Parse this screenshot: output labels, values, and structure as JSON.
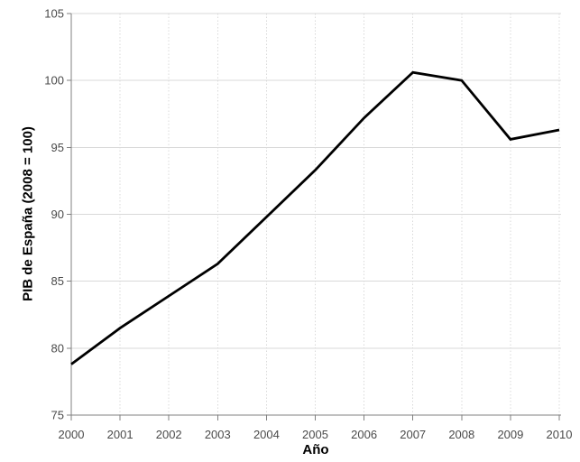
{
  "chart_data": {
    "type": "line",
    "x": [
      "2000",
      "2001",
      "2002",
      "2003",
      "2004",
      "2005",
      "2006",
      "2007",
      "2008",
      "2009",
      "2010"
    ],
    "series": [
      {
        "name": "PIB de España",
        "values": [
          78.8,
          81.5,
          83.9,
          86.3,
          89.8,
          93.3,
          97.2,
          100.6,
          100.0,
          95.6,
          96.3
        ]
      }
    ],
    "title": "",
    "xlabel": "Año",
    "ylabel": "PIB de España (2008 = 100)",
    "ylim": [
      75,
      105
    ],
    "ytick_step": 5,
    "grid": true,
    "legend": false,
    "layout": {
      "horizontal_gridlines": "solid",
      "vertical_gridlines": "dotted"
    },
    "colors": {
      "line": "#000000",
      "gridline": "#d9d9d9",
      "axis": "#808080",
      "tick_label": "#4a4a4a",
      "axis_title": "#000000",
      "background": "#ffffff"
    }
  }
}
